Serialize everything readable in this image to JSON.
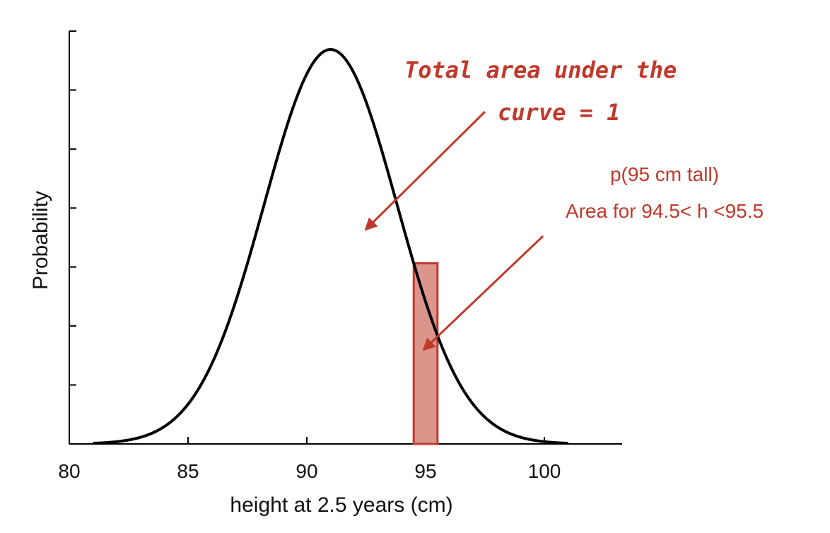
{
  "chart_data": {
    "type": "line",
    "title": "",
    "xlabel": "height at 2.5 years (cm)",
    "ylabel": "Probability",
    "xlim": [
      80,
      103
    ],
    "ylim": [
      0,
      1
    ],
    "x_ticks": [
      80,
      85,
      90,
      95,
      100
    ],
    "x_tick_labels": [
      "80",
      "85",
      "90",
      "95",
      "100"
    ],
    "y_tick_count": 7,
    "y_tick_labels_shown": false,
    "series": [
      {
        "name": "normal density",
        "distribution": "normal",
        "mean": 91,
        "sd": 2.8,
        "x_range": [
          81,
          101
        ],
        "color": "#000000"
      }
    ],
    "shaded_region": {
      "x_from": 94.5,
      "x_to": 95.5,
      "fill": "#dc958b",
      "edge": "#c0392b"
    },
    "annotations": [
      {
        "id": "total-area",
        "lines": [
          "Total area under the",
          "curve = 1"
        ],
        "color": "#c0392b"
      },
      {
        "id": "p95",
        "lines": [
          "p(95 cm tall)",
          "Area for 94.5< h <95.5"
        ],
        "color": "#c0392b"
      }
    ]
  }
}
